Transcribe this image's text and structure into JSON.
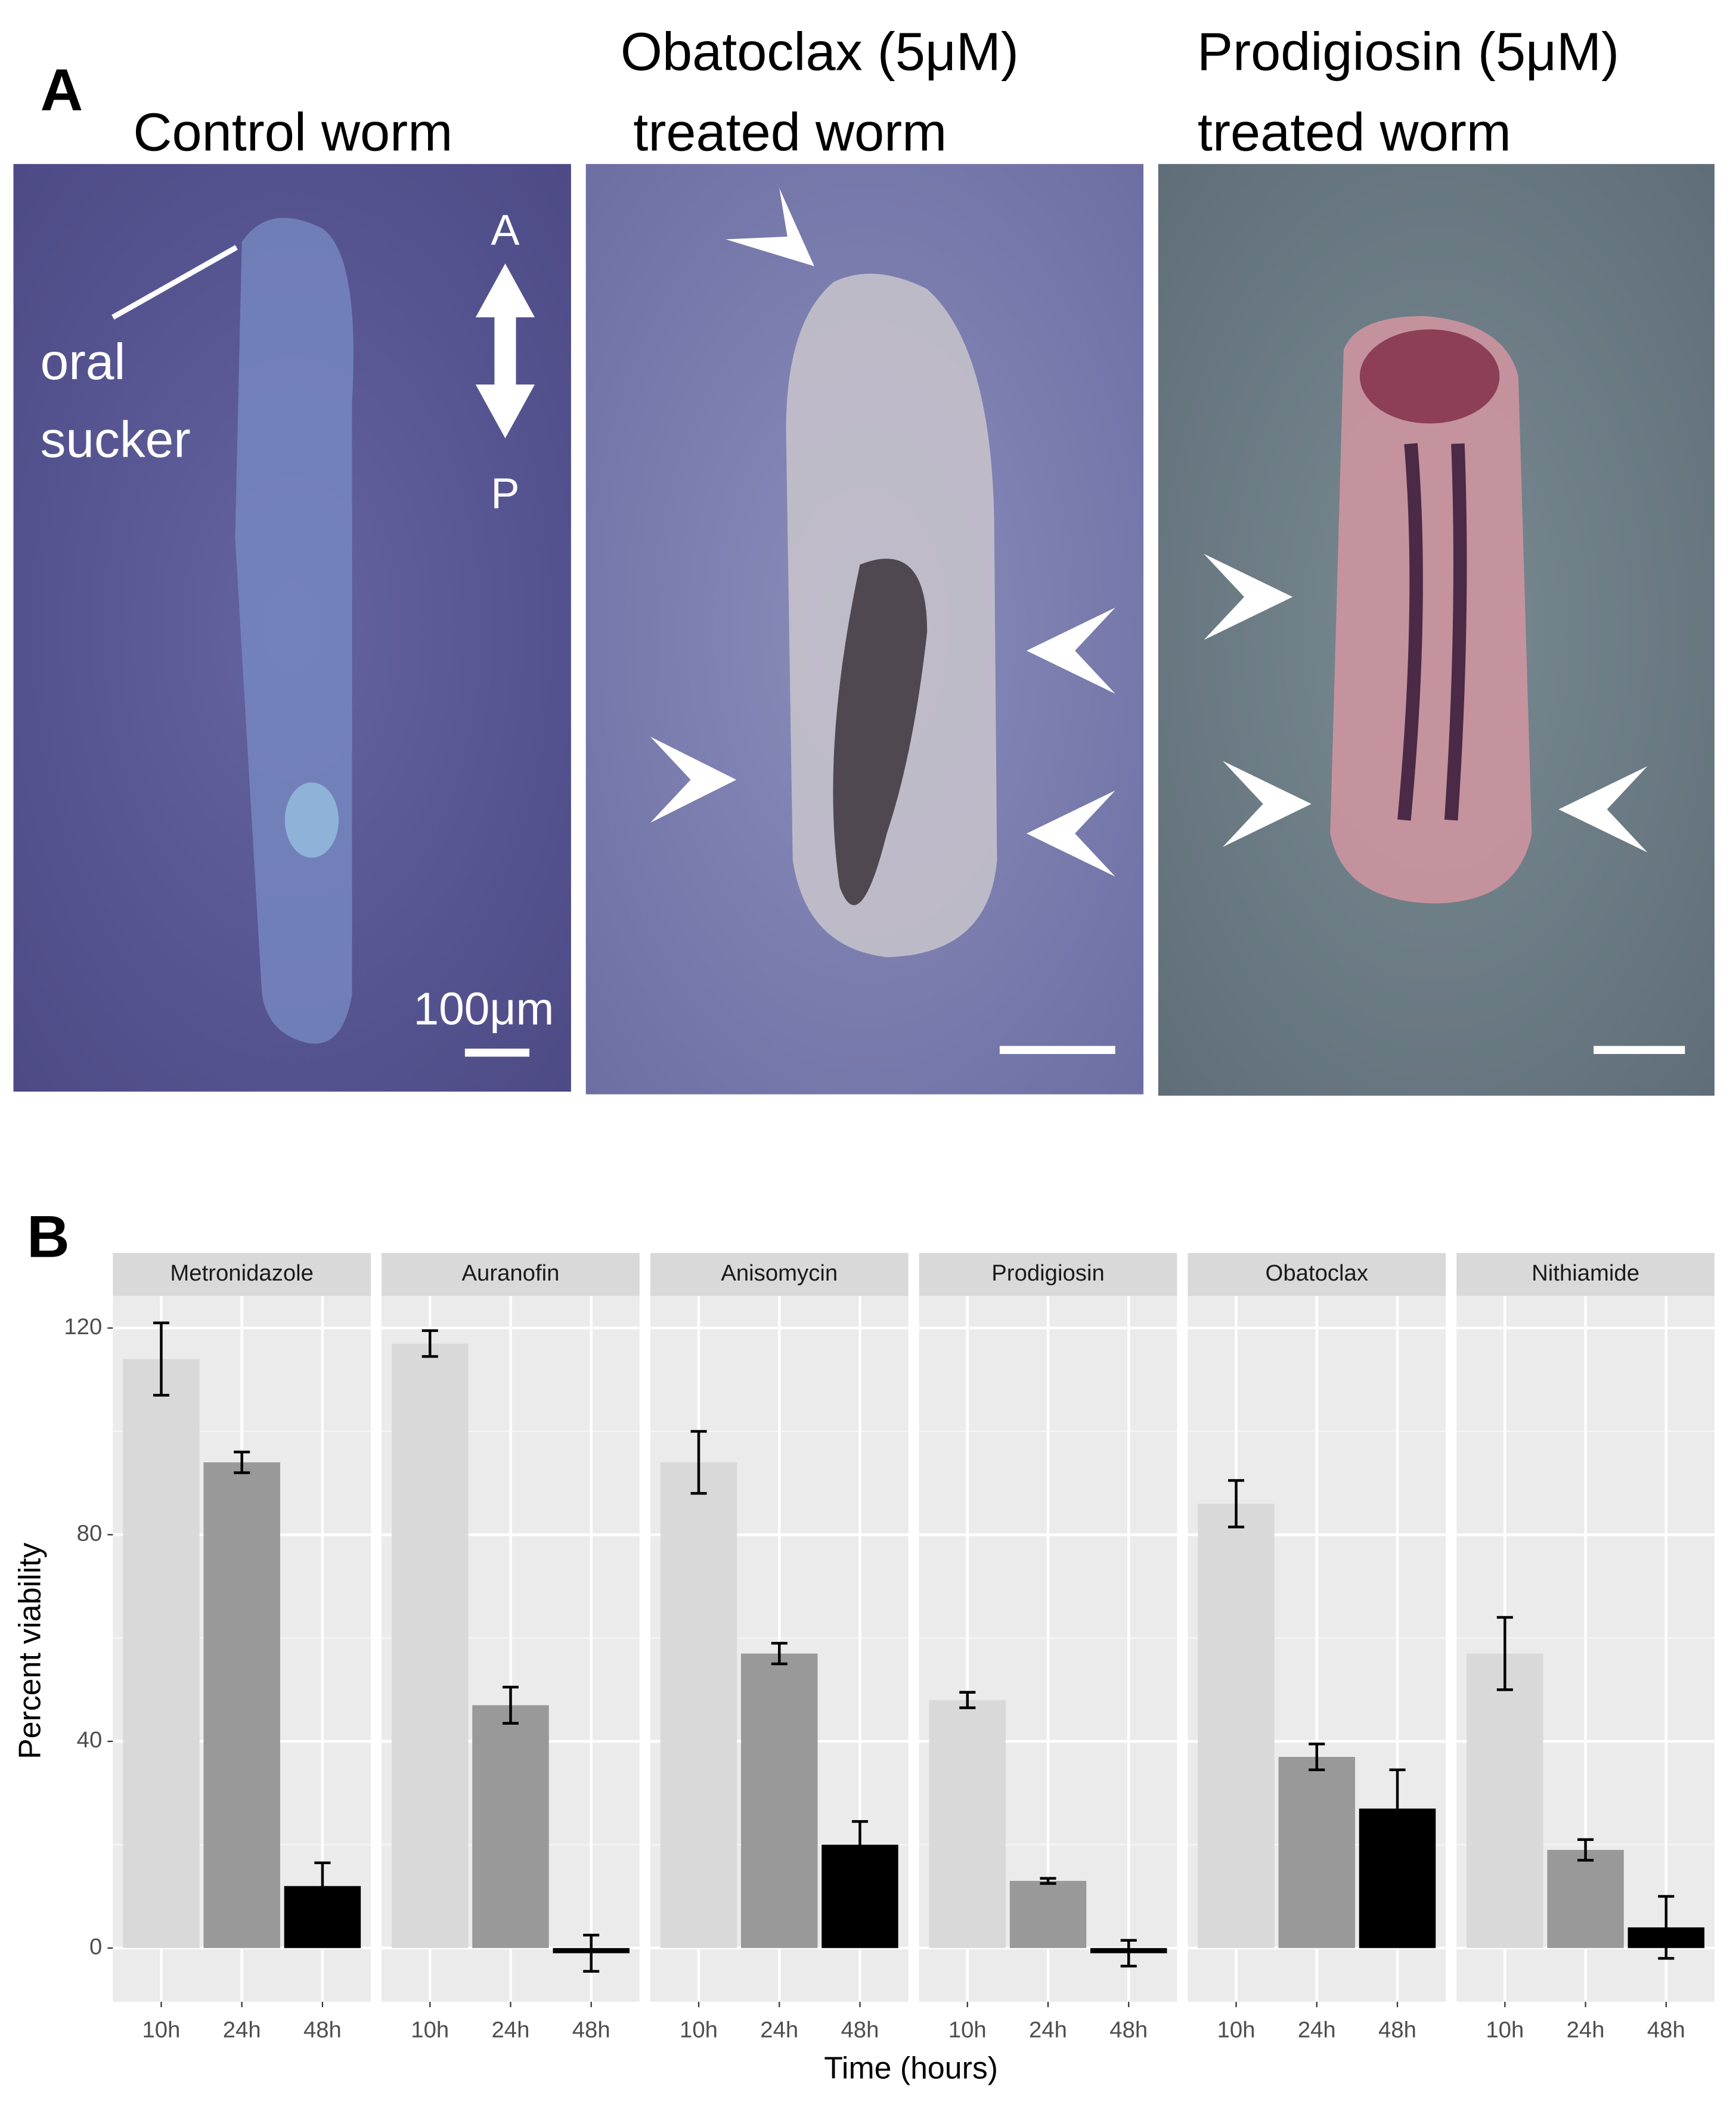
{
  "panel_a": {
    "label": "A",
    "panels": [
      {
        "title": [
          "Control worm"
        ],
        "annotations": [
          "oral",
          "sucker",
          "A",
          "P",
          "100μm"
        ]
      },
      {
        "title": [
          "Obatoclax (5μM)",
          "treated worm"
        ]
      },
      {
        "title": [
          "Prodigiosin (5μM)",
          "treated worm"
        ]
      }
    ]
  },
  "chart_data": {
    "type": "bar",
    "label": "B",
    "x_label": "Time (hours)",
    "y_label": "Percent viability",
    "categories": [
      "10h",
      "24h",
      "48h"
    ],
    "colors": [
      "#d9d9d9",
      "#999999",
      "#000000"
    ],
    "facets": [
      {
        "name": "Metronidazole",
        "values": [
          114,
          94,
          12
        ],
        "errors": [
          7,
          2,
          4.5
        ]
      },
      {
        "name": "Auranofin",
        "values": [
          117,
          47,
          -1
        ],
        "errors": [
          2.5,
          3.5,
          3.5
        ]
      },
      {
        "name": "Anisomycin",
        "values": [
          94,
          57,
          20
        ],
        "errors": [
          6,
          2,
          4.5
        ]
      },
      {
        "name": "Prodigiosin",
        "values": [
          48,
          13,
          -1
        ],
        "errors": [
          1.5,
          0.5,
          2.5
        ]
      },
      {
        "name": "Obatoclax",
        "values": [
          86,
          37,
          27
        ],
        "errors": [
          4.5,
          2.5,
          7.5
        ]
      },
      {
        "name": "Nithiamide",
        "values": [
          57,
          19,
          4
        ],
        "errors": [
          7,
          2,
          6
        ]
      }
    ],
    "ylim": [
      -10.4,
      126.2
    ],
    "yticks": [
      0,
      40,
      80,
      120
    ],
    "grid": true
  }
}
